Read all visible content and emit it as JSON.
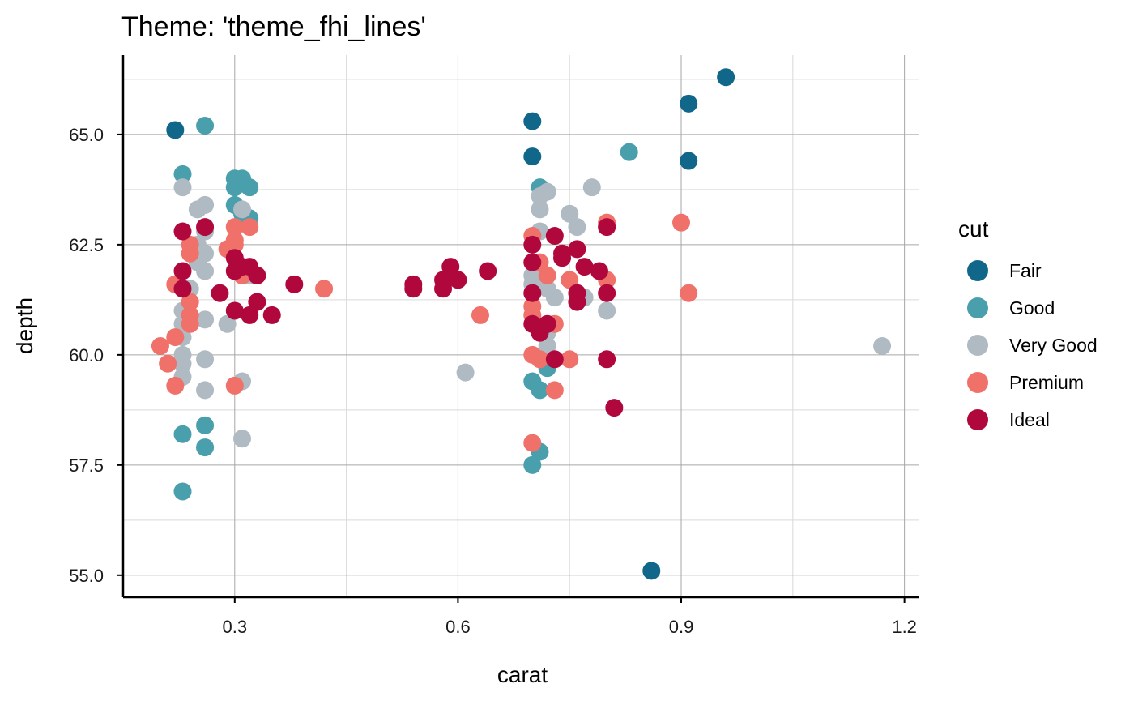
{
  "chart_data": {
    "type": "scatter",
    "title": "Theme: 'theme_fhi_lines'",
    "xlabel": "carat",
    "ylabel": "depth",
    "xlim": [
      0.15,
      1.22
    ],
    "ylim": [
      54.5,
      66.8
    ],
    "x_ticks": [
      "0.3",
      "0.6",
      "0.9",
      "1.2"
    ],
    "y_ticks": [
      "55.0",
      "57.5",
      "60.0",
      "62.5",
      "65.0"
    ],
    "grid": true,
    "legend": {
      "title": "cut",
      "position": "right"
    },
    "series": [
      {
        "name": "Fair",
        "color": "#10678a",
        "points": [
          [
            0.22,
            65.1
          ],
          [
            0.7,
            65.3
          ],
          [
            0.7,
            64.5
          ],
          [
            0.91,
            65.7
          ],
          [
            0.96,
            66.3
          ],
          [
            0.91,
            64.4
          ],
          [
            0.86,
            55.1
          ]
        ]
      },
      {
        "name": "Good",
        "color": "#4a9fad",
        "points": [
          [
            0.26,
            65.2
          ],
          [
            0.23,
            64.1
          ],
          [
            0.3,
            64.0
          ],
          [
            0.31,
            64.0
          ],
          [
            0.3,
            63.8
          ],
          [
            0.32,
            63.8
          ],
          [
            0.3,
            63.4
          ],
          [
            0.31,
            63.2
          ],
          [
            0.32,
            63.1
          ],
          [
            0.23,
            58.2
          ],
          [
            0.26,
            58.4
          ],
          [
            0.26,
            57.9
          ],
          [
            0.23,
            56.9
          ],
          [
            0.83,
            64.6
          ],
          [
            0.71,
            63.8
          ],
          [
            0.7,
            59.4
          ],
          [
            0.72,
            59.7
          ],
          [
            0.71,
            59.2
          ],
          [
            0.7,
            57.5
          ],
          [
            0.71,
            57.8
          ]
        ]
      },
      {
        "name": "Very Good",
        "color": "#afbac2",
        "points": [
          [
            0.23,
            63.8
          ],
          [
            0.26,
            63.4
          ],
          [
            0.25,
            63.3
          ],
          [
            0.26,
            62.8
          ],
          [
            0.25,
            62.5
          ],
          [
            0.26,
            62.3
          ],
          [
            0.25,
            62.1
          ],
          [
            0.26,
            61.9
          ],
          [
            0.24,
            61.5
          ],
          [
            0.23,
            61.0
          ],
          [
            0.23,
            60.7
          ],
          [
            0.23,
            60.4
          ],
          [
            0.26,
            60.8
          ],
          [
            0.29,
            60.7
          ],
          [
            0.23,
            60.0
          ],
          [
            0.23,
            59.8
          ],
          [
            0.23,
            59.5
          ],
          [
            0.26,
            59.9
          ],
          [
            0.26,
            59.2
          ],
          [
            0.31,
            59.4
          ],
          [
            0.31,
            58.1
          ],
          [
            0.31,
            63.3
          ],
          [
            0.32,
            61.8
          ],
          [
            0.61,
            59.6
          ],
          [
            0.71,
            63.6
          ],
          [
            0.72,
            63.7
          ],
          [
            0.71,
            63.3
          ],
          [
            0.78,
            63.8
          ],
          [
            0.75,
            63.2
          ],
          [
            0.76,
            62.9
          ],
          [
            0.71,
            62.8
          ],
          [
            0.72,
            61.5
          ],
          [
            0.73,
            61.3
          ],
          [
            0.7,
            61.6
          ],
          [
            0.72,
            60.5
          ],
          [
            0.72,
            60.2
          ],
          [
            0.77,
            61.3
          ],
          [
            0.8,
            61.0
          ],
          [
            0.7,
            61.8
          ],
          [
            1.17,
            60.2
          ]
        ]
      },
      {
        "name": "Premium",
        "color": "#f0706a",
        "points": [
          [
            0.2,
            60.2
          ],
          [
            0.21,
            59.8
          ],
          [
            0.22,
            60.4
          ],
          [
            0.22,
            59.3
          ],
          [
            0.22,
            61.6
          ],
          [
            0.24,
            62.5
          ],
          [
            0.24,
            62.3
          ],
          [
            0.24,
            61.2
          ],
          [
            0.24,
            60.9
          ],
          [
            0.24,
            60.7
          ],
          [
            0.3,
            62.9
          ],
          [
            0.3,
            62.6
          ],
          [
            0.29,
            62.4
          ],
          [
            0.32,
            62.9
          ],
          [
            0.3,
            62.5
          ],
          [
            0.31,
            61.8
          ],
          [
            0.3,
            59.3
          ],
          [
            0.42,
            61.5
          ],
          [
            0.63,
            60.9
          ],
          [
            0.7,
            62.7
          ],
          [
            0.71,
            62.1
          ],
          [
            0.72,
            61.8
          ],
          [
            0.7,
            61.1
          ],
          [
            0.7,
            60.9
          ],
          [
            0.73,
            60.7
          ],
          [
            0.7,
            60.0
          ],
          [
            0.71,
            59.9
          ],
          [
            0.75,
            59.9
          ],
          [
            0.73,
            59.2
          ],
          [
            0.7,
            58.0
          ],
          [
            0.75,
            61.7
          ],
          [
            0.8,
            63.0
          ],
          [
            0.8,
            61.7
          ],
          [
            0.9,
            63.0
          ],
          [
            0.91,
            61.4
          ]
        ]
      },
      {
        "name": "Ideal",
        "color": "#b0073d",
        "points": [
          [
            0.23,
            62.8
          ],
          [
            0.26,
            62.9
          ],
          [
            0.23,
            61.9
          ],
          [
            0.23,
            61.5
          ],
          [
            0.3,
            62.2
          ],
          [
            0.3,
            61.9
          ],
          [
            0.31,
            62.0
          ],
          [
            0.32,
            62.0
          ],
          [
            0.33,
            61.8
          ],
          [
            0.28,
            61.4
          ],
          [
            0.3,
            61.0
          ],
          [
            0.32,
            60.9
          ],
          [
            0.33,
            61.2
          ],
          [
            0.35,
            60.9
          ],
          [
            0.38,
            61.6
          ],
          [
            0.54,
            61.6
          ],
          [
            0.54,
            61.5
          ],
          [
            0.58,
            61.5
          ],
          [
            0.58,
            61.7
          ],
          [
            0.59,
            62.0
          ],
          [
            0.6,
            61.7
          ],
          [
            0.64,
            61.9
          ],
          [
            0.7,
            62.5
          ],
          [
            0.7,
            62.1
          ],
          [
            0.73,
            62.7
          ],
          [
            0.74,
            62.3
          ],
          [
            0.74,
            62.2
          ],
          [
            0.76,
            62.4
          ],
          [
            0.77,
            62.0
          ],
          [
            0.79,
            61.9
          ],
          [
            0.76,
            61.4
          ],
          [
            0.76,
            61.2
          ],
          [
            0.8,
            61.4
          ],
          [
            0.8,
            62.9
          ],
          [
            0.7,
            61.4
          ],
          [
            0.7,
            60.7
          ],
          [
            0.71,
            60.5
          ],
          [
            0.72,
            60.7
          ],
          [
            0.73,
            59.9
          ],
          [
            0.8,
            59.9
          ],
          [
            0.81,
            58.8
          ]
        ]
      }
    ]
  }
}
